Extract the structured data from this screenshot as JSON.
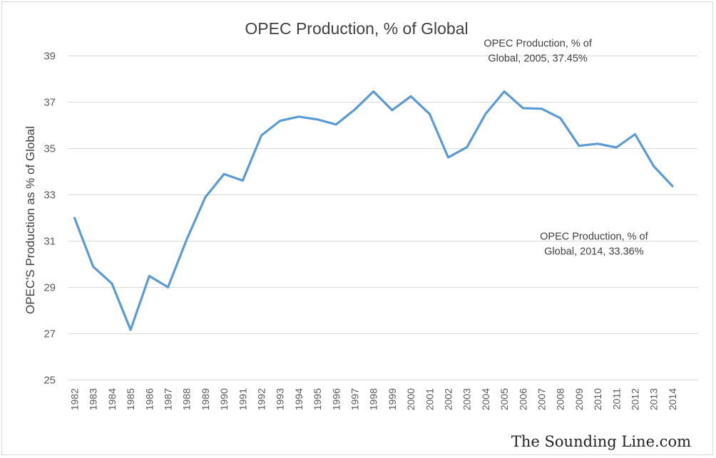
{
  "chart_data": {
    "type": "line",
    "title": "OPEC Production, % of Global",
    "xlabel": "",
    "ylabel": "OPEC'S Production as % of Global",
    "ylim": [
      25,
      39
    ],
    "yticks": [
      25,
      27,
      29,
      31,
      33,
      35,
      37,
      39
    ],
    "categories": [
      "1982",
      "1983",
      "1984",
      "1985",
      "1986",
      "1987",
      "1988",
      "1989",
      "1990",
      "1991",
      "1992",
      "1993",
      "1994",
      "1995",
      "1996",
      "1997",
      "1998",
      "1999",
      "2000",
      "2001",
      "2002",
      "2003",
      "2004",
      "2005",
      "2006",
      "2007",
      "2008",
      "2009",
      "2010",
      "2011",
      "2012",
      "2013",
      "2014"
    ],
    "series": [
      {
        "color": "#5b9bd5",
        "values": [
          31.98,
          29.88,
          29.15,
          27.15,
          29.48,
          28.99,
          31.05,
          32.88,
          33.88,
          33.6,
          35.55,
          36.18,
          36.36,
          36.24,
          36.02,
          36.67,
          37.45,
          36.64,
          37.24,
          36.48,
          34.6,
          35.04,
          36.48,
          37.45,
          36.73,
          36.7,
          36.3,
          35.1,
          35.19,
          35.03,
          35.6,
          34.22,
          33.36
        ]
      }
    ],
    "annotations": [
      {
        "category": "2005",
        "value": 37.45,
        "line1": "OPEC Production, % of",
        "line2": "Global, 2005, 37.45%"
      },
      {
        "category": "2014",
        "value": 33.36,
        "line1": "OPEC Production, % of",
        "line2": "Global, 2014, 33.36%"
      }
    ],
    "grid": true,
    "legend": "none"
  },
  "watermark": "The Sounding Line.com"
}
